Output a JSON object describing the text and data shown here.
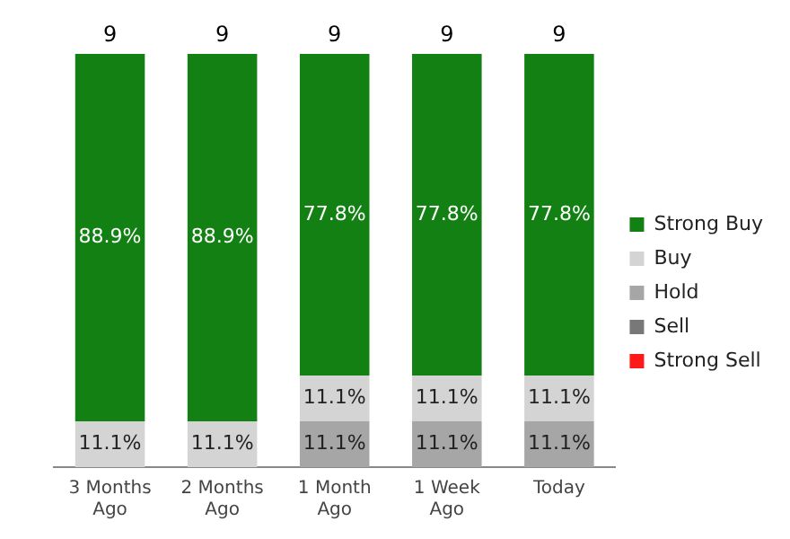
{
  "chart_data": {
    "type": "bar",
    "stacked": true,
    "categories": [
      "3 Months Ago",
      "2 Months Ago",
      "1 Month Ago",
      "1 Week Ago",
      "Today"
    ],
    "series": [
      {
        "name": "Strong Sell",
        "color": "#ff1a1a",
        "values": [
          null,
          null,
          null,
          null,
          null
        ],
        "value_labels": [
          null,
          null,
          null,
          null,
          null
        ]
      },
      {
        "name": "Sell",
        "color": "#787878",
        "values": [
          null,
          null,
          null,
          null,
          null
        ],
        "value_labels": [
          null,
          null,
          null,
          null,
          null
        ]
      },
      {
        "name": "Hold",
        "color": "#a6a6a6",
        "values": [
          null,
          null,
          11.1,
          11.1,
          11.1
        ],
        "value_labels": [
          null,
          null,
          "11.1%",
          "11.1%",
          "11.1%"
        ]
      },
      {
        "name": "Buy",
        "color": "#d4d4d4",
        "values": [
          11.1,
          11.1,
          11.1,
          11.1,
          11.1
        ],
        "value_labels": [
          "11.1%",
          "11.1%",
          "11.1%",
          "11.1%",
          "11.1%"
        ]
      },
      {
        "name": "Strong Buy",
        "color": "#128012",
        "values": [
          88.9,
          88.9,
          77.8,
          77.8,
          77.8
        ],
        "value_labels": [
          "88.9%",
          "88.9%",
          "77.8%",
          "77.8%",
          "77.8%"
        ]
      }
    ],
    "annotations": [
      {
        "text": "9",
        "x": "3 Months Ago",
        "y": 100
      },
      {
        "text": "9",
        "x": "2 Months Ago",
        "y": 100
      },
      {
        "text": "9",
        "x": "1 Month Ago",
        "y": 100
      },
      {
        "text": "9",
        "x": "1 Week Ago",
        "y": 100
      },
      {
        "text": "9",
        "x": "Today",
        "y": 100
      }
    ],
    "ylim": [
      0,
      100
    ],
    "tick_labels": "x",
    "grid": false,
    "legend": "right"
  }
}
